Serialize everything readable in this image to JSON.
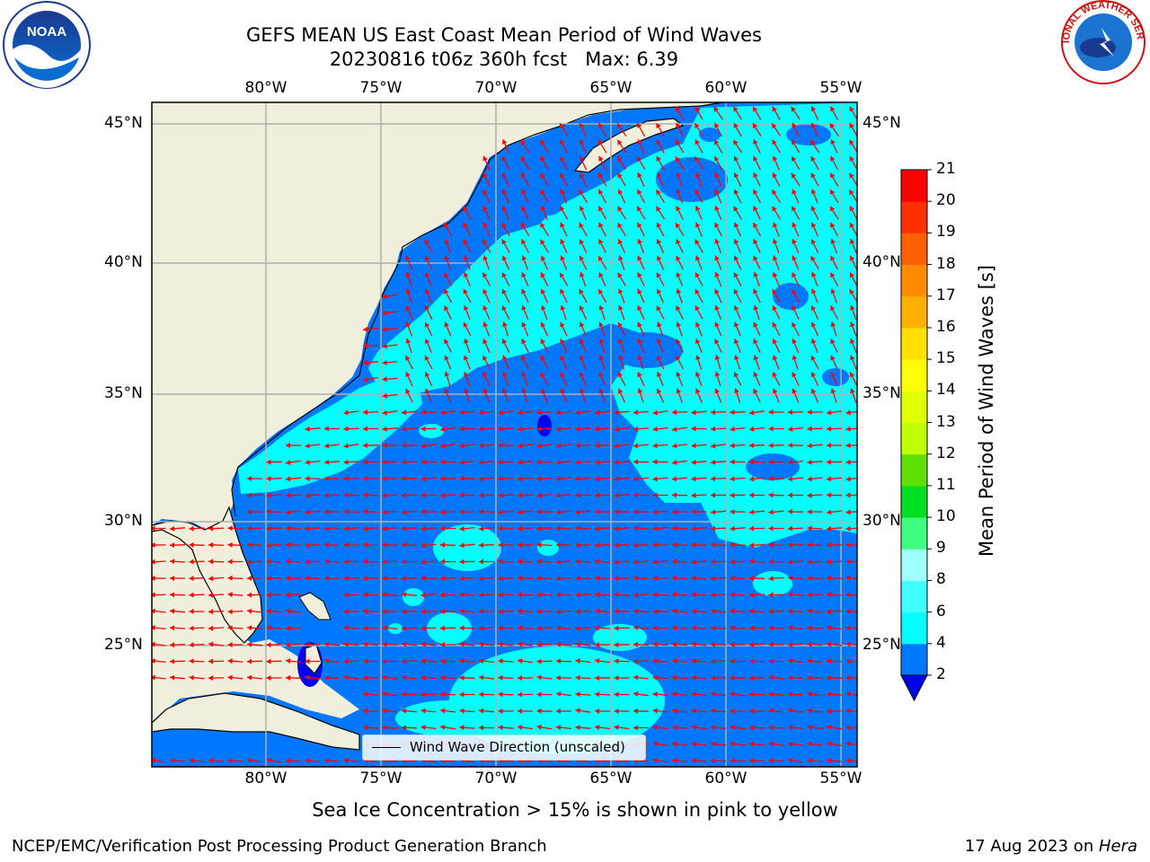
{
  "title_line1": "GEFS MEAN US East Coast Mean Period of Wind Waves",
  "title_line2": "20230816 t06z 360h fcst   Max: 6.39",
  "lon_labels": [
    "80°W",
    "75°W",
    "70°W",
    "65°W",
    "60°W",
    "55°W"
  ],
  "lat_labels": [
    "45°N",
    "40°N",
    "35°N",
    "30°N",
    "25°N"
  ],
  "colorbar": {
    "label": "Mean Period of Wind Waves [s]",
    "ticks": [
      "2",
      "4",
      "6",
      "8",
      "9",
      "10",
      "11",
      "12",
      "13",
      "14",
      "15",
      "16",
      "17",
      "18",
      "19",
      "20",
      "21"
    ],
    "colors": [
      "#0077ff",
      "#00ffff",
      "#40ffff",
      "#a0ffff",
      "#40ff80",
      "#00e020",
      "#60e000",
      "#c0ff00",
      "#e0ff00",
      "#ffff00",
      "#ffe000",
      "#ffb000",
      "#ff8c00",
      "#ff6000",
      "#ff3000",
      "#ff0000"
    ],
    "extend_color": "#0000ee"
  },
  "legend_text": "Wind Wave Direction (unscaled)",
  "sea_ice_note": "Sea Ice Concentration > 15% is shown in pink to yellow",
  "footer_left": "NCEP/EMC/Verification Post Processing Product Generation Branch",
  "footer_date": "17 Aug 2023 on ",
  "footer_machine": "Hera",
  "logos": {
    "left": "noaa-logo",
    "right": "national-weather-service-logo",
    "left_text": "NOAA",
    "right_text": "NATIONAL WEATHER SERVICE"
  },
  "colors": {
    "land": "#efefdc",
    "ocean_low": "#0077ff",
    "ocean_mid": "#00ffff",
    "arrow": "#ff0000",
    "grid": "#b0b0b0"
  }
}
